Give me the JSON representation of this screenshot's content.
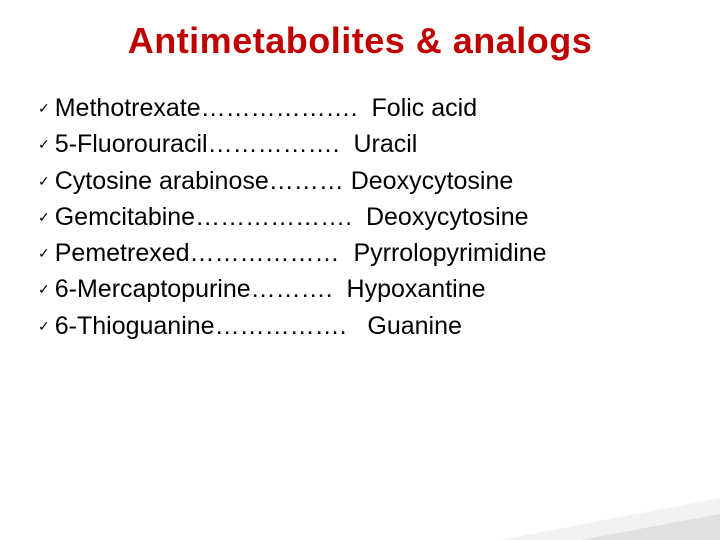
{
  "title": "Antimetabolites & analogs",
  "check_glyph": "✓",
  "title_color": "#c00000",
  "text_color": "#000000",
  "background_color": "#ffffff",
  "items": [
    {
      "drug": "Methotrexate",
      "dots": "……………….",
      "analog": "Folic acid",
      "analog_pad": "  "
    },
    {
      "drug": "5-Fluorouracil",
      "dots": "…………….",
      "analog": "Uracil",
      "analog_pad": "  "
    },
    {
      "drug": "Cytosine arabinose",
      "dots": "………",
      "analog": "Deoxycytosine",
      "analog_pad": " "
    },
    {
      "drug": "Gemcitabine",
      "dots": "……………….",
      "analog": "Deoxycytosine",
      "analog_pad": "  "
    },
    {
      "drug": "Pemetrexed ",
      "dots": "………………",
      "analog": "Pyrrolopyrimidine",
      "analog_pad": "  "
    },
    {
      "drug": "6-Mercaptopurine",
      "dots": "……….",
      "analog": "Hypoxantine",
      "analog_pad": "  "
    },
    {
      "drug": "6-Thioguanine",
      "dots": "…………….",
      "analog": "Guanine",
      "analog_pad": "   "
    }
  ]
}
